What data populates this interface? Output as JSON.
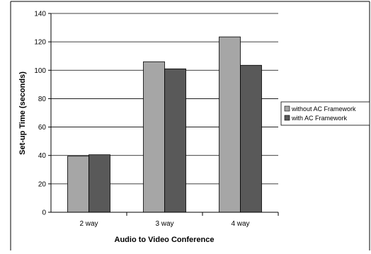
{
  "chart_data": {
    "type": "bar",
    "title": "",
    "xlabel": "Audio to Video Conference",
    "ylabel": "Set-up Time (seconds)",
    "categories": [
      "2 way",
      "3 way",
      "4 way"
    ],
    "series": [
      {
        "name": "without AC Framework",
        "values": [
          39.5,
          106,
          123.5
        ],
        "color": "#a6a6a6"
      },
      {
        "name": "with AC Framework",
        "values": [
          40.5,
          101,
          103.5
        ],
        "color": "#595959"
      }
    ],
    "ylim": [
      0,
      140
    ],
    "yticks": [
      0,
      20,
      40,
      60,
      80,
      100,
      120,
      140
    ],
    "grid": true,
    "legend_position": "right"
  }
}
